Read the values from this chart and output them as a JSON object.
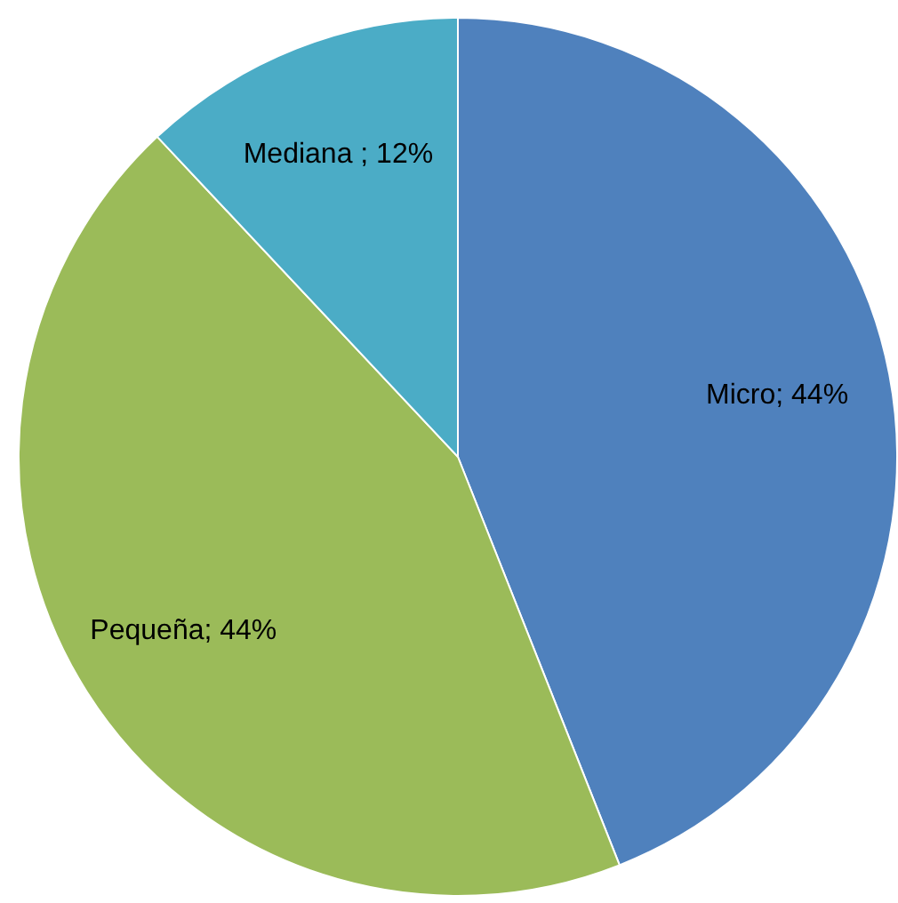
{
  "chart_data": {
    "type": "pie",
    "categories": [
      "Micro",
      "Pequeña",
      "Mediana"
    ],
    "values": [
      44,
      44,
      12
    ],
    "colors": [
      "#4f81bd",
      "#9bbb59",
      "#4bacc6"
    ],
    "value_labels": [
      "; 44%",
      "; 44%",
      " ; 12%"
    ],
    "legend": false
  }
}
